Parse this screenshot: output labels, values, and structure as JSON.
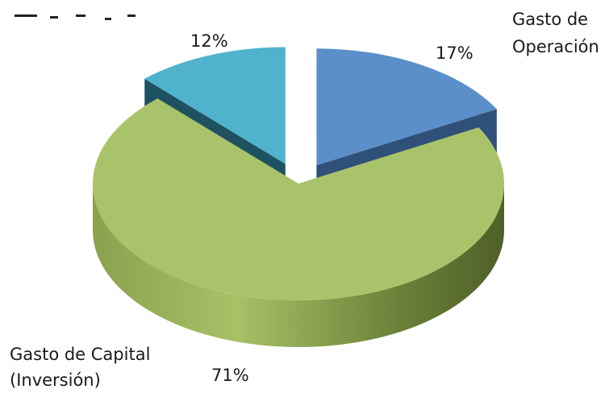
{
  "chart_data": {
    "type": "pie",
    "title": "",
    "slices": [
      {
        "name": "Gasto de Operación",
        "value": 17,
        "label": "17%",
        "color": "#5b8fc9",
        "name_lines": [
          "Gasto de",
          "Operación"
        ]
      },
      {
        "name": "Gasto de Capital (Inversión)",
        "value": 71,
        "label": "71%",
        "color": "#a9c36a",
        "name_lines": [
          "Gasto de Capital",
          "(Inversión)"
        ]
      },
      {
        "name": "",
        "value": 12,
        "label": "12%",
        "color": "#4fb3cd",
        "name_lines": []
      }
    ],
    "exploded": true,
    "three_d": true,
    "legend": "none"
  }
}
